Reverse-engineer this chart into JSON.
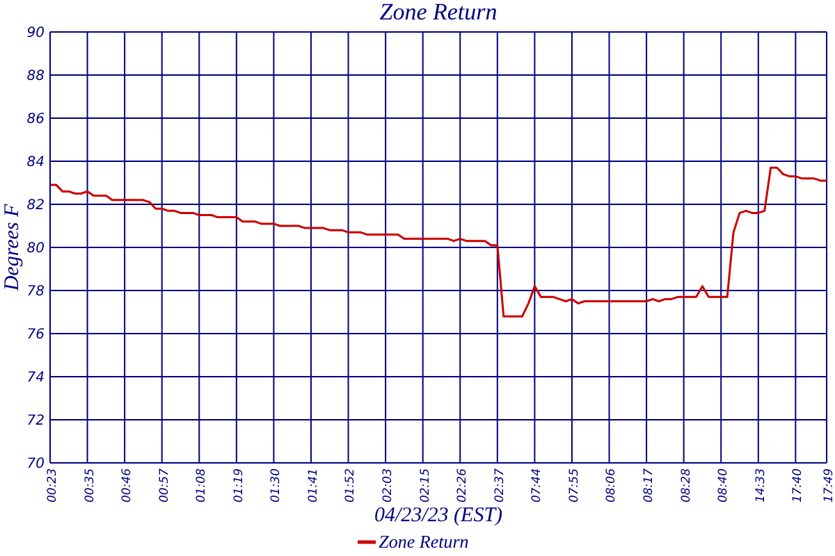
{
  "chart_data": {
    "type": "line",
    "title": "Zone Return",
    "xlabel": "04/23/23 (EST)",
    "ylabel": "Degrees F",
    "categories": [
      "00:23",
      null,
      null,
      null,
      null,
      null,
      "00:35",
      null,
      null,
      null,
      null,
      null,
      "00:46",
      null,
      null,
      null,
      null,
      null,
      "00:57",
      null,
      null,
      null,
      null,
      null,
      "01:08",
      null,
      null,
      null,
      null,
      null,
      "01:19",
      null,
      null,
      null,
      null,
      null,
      "01:30",
      null,
      null,
      null,
      null,
      null,
      "01:41",
      null,
      null,
      null,
      null,
      null,
      "01:52",
      null,
      null,
      null,
      null,
      null,
      "02:03",
      null,
      null,
      null,
      null,
      null,
      "02:15",
      null,
      null,
      null,
      null,
      null,
      "02:26",
      null,
      null,
      null,
      null,
      null,
      "02:37",
      null,
      null,
      null,
      null,
      null,
      "07:44",
      null,
      null,
      null,
      null,
      null,
      "07:55",
      null,
      null,
      null,
      null,
      null,
      "08:06",
      null,
      null,
      null,
      null,
      null,
      "08:17",
      null,
      null,
      null,
      null,
      null,
      "08:28",
      null,
      null,
      null,
      null,
      null,
      "08:40",
      null,
      null,
      null,
      null,
      null,
      "14:33",
      null,
      null,
      null,
      null,
      null,
      "17:40",
      null,
      null,
      null,
      null,
      "17:49"
    ],
    "series": [
      {
        "name": "Zone Return",
        "color": "#cc0000",
        "values": [
          82.9,
          82.9,
          82.6,
          82.6,
          82.5,
          82.5,
          82.6,
          82.4,
          82.4,
          82.4,
          82.2,
          82.2,
          82.2,
          82.2,
          82.2,
          82.2,
          82.1,
          81.8,
          81.8,
          81.7,
          81.7,
          81.6,
          81.6,
          81.6,
          81.5,
          81.5,
          81.5,
          81.4,
          81.4,
          81.4,
          81.4,
          81.2,
          81.2,
          81.2,
          81.1,
          81.1,
          81.1,
          81.0,
          81.0,
          81.0,
          81.0,
          80.9,
          80.9,
          80.9,
          80.9,
          80.8,
          80.8,
          80.8,
          80.7,
          80.7,
          80.7,
          80.6,
          80.6,
          80.6,
          80.6,
          80.6,
          80.6,
          80.4,
          80.4,
          80.4,
          80.4,
          80.4,
          80.4,
          80.4,
          80.4,
          80.3,
          80.4,
          80.3,
          80.3,
          80.3,
          80.3,
          80.1,
          80.1,
          76.8,
          76.8,
          76.8,
          76.8,
          77.4,
          78.2,
          77.7,
          77.7,
          77.7,
          77.6,
          77.5,
          77.6,
          77.4,
          77.5,
          77.5,
          77.5,
          77.5,
          77.5,
          77.5,
          77.5,
          77.5,
          77.5,
          77.5,
          77.5,
          77.6,
          77.5,
          77.6,
          77.6,
          77.7,
          77.7,
          77.7,
          77.7,
          78.2,
          77.7,
          77.7,
          77.7,
          77.7,
          80.7,
          81.6,
          81.7,
          81.6,
          81.6,
          81.7,
          83.7,
          83.7,
          83.4,
          83.3,
          83.3,
          83.2,
          83.2,
          83.2,
          83.1,
          83.1
        ]
      }
    ],
    "ylim": [
      70,
      90
    ],
    "yticks": [
      70,
      72,
      74,
      76,
      78,
      80,
      82,
      84,
      86,
      88,
      90
    ],
    "grid": true,
    "legend": "bottom",
    "marker": "none"
  }
}
